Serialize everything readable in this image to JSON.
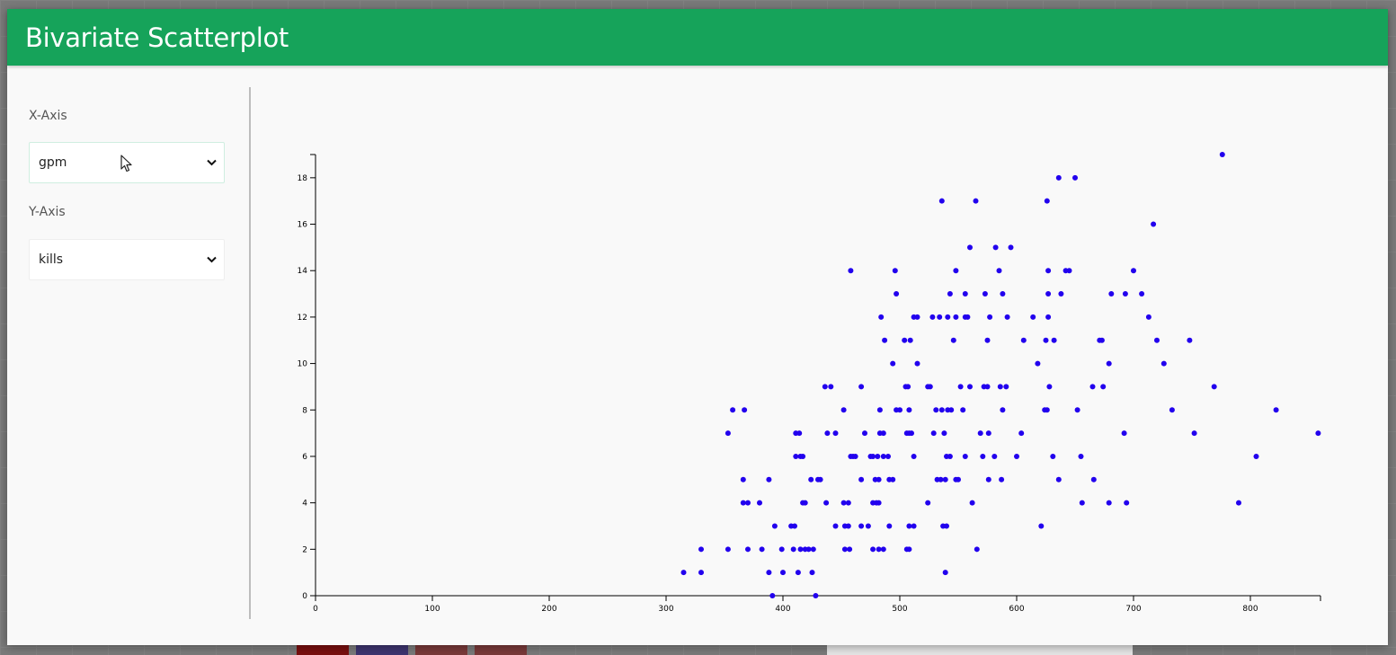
{
  "header": {
    "title": "Bivariate Scatterplot"
  },
  "controls": {
    "x_axis": {
      "label": "X-Axis",
      "selected": "gpm"
    },
    "y_axis": {
      "label": "Y-Axis",
      "selected": "kills"
    }
  },
  "colors": {
    "header": "#16a35a",
    "point": "#2200ee"
  },
  "chart_data": {
    "type": "scatter",
    "title": "",
    "xlabel": "",
    "ylabel": "",
    "xlim": [
      0,
      860
    ],
    "ylim": [
      0,
      19
    ],
    "xticks": [
      0,
      100,
      200,
      300,
      400,
      500,
      600,
      700,
      800
    ],
    "yticks": [
      0,
      2,
      4,
      6,
      8,
      10,
      12,
      14,
      16,
      18
    ],
    "grid": false,
    "legend": "none",
    "points": [
      [
        776,
        19
      ],
      [
        636,
        18
      ],
      [
        650,
        18
      ],
      [
        536,
        17
      ],
      [
        565,
        17
      ],
      [
        626,
        17
      ],
      [
        717,
        16
      ],
      [
        560,
        15
      ],
      [
        582,
        15
      ],
      [
        595,
        15
      ],
      [
        458,
        14
      ],
      [
        496,
        14
      ],
      [
        548,
        14
      ],
      [
        585,
        14
      ],
      [
        627,
        14
      ],
      [
        642,
        14
      ],
      [
        645,
        14
      ],
      [
        700,
        14
      ],
      [
        497,
        13
      ],
      [
        543,
        13
      ],
      [
        556,
        13
      ],
      [
        573,
        13
      ],
      [
        588,
        13
      ],
      [
        627,
        13
      ],
      [
        638,
        13
      ],
      [
        681,
        13
      ],
      [
        693,
        13
      ],
      [
        707,
        13
      ],
      [
        484,
        12
      ],
      [
        512,
        12
      ],
      [
        515,
        12
      ],
      [
        528,
        12
      ],
      [
        534,
        12
      ],
      [
        541,
        12
      ],
      [
        548,
        12
      ],
      [
        556,
        12
      ],
      [
        558,
        12
      ],
      [
        577,
        12
      ],
      [
        592,
        12
      ],
      [
        614,
        12
      ],
      [
        627,
        12
      ],
      [
        713,
        12
      ],
      [
        487,
        11
      ],
      [
        504,
        11
      ],
      [
        509,
        11
      ],
      [
        546,
        11
      ],
      [
        575,
        11
      ],
      [
        606,
        11
      ],
      [
        625,
        11
      ],
      [
        632,
        11
      ],
      [
        671,
        11
      ],
      [
        673,
        11
      ],
      [
        720,
        11
      ],
      [
        748,
        11
      ],
      [
        494,
        10
      ],
      [
        515,
        10
      ],
      [
        618,
        10
      ],
      [
        679,
        10
      ],
      [
        726,
        10
      ],
      [
        436,
        9
      ],
      [
        441,
        9
      ],
      [
        467,
        9
      ],
      [
        505,
        9
      ],
      [
        507,
        9
      ],
      [
        524,
        9
      ],
      [
        526,
        9
      ],
      [
        552,
        9
      ],
      [
        560,
        9
      ],
      [
        572,
        9
      ],
      [
        575,
        9
      ],
      [
        586,
        9
      ],
      [
        591,
        9
      ],
      [
        628,
        9
      ],
      [
        665,
        9
      ],
      [
        674,
        9
      ],
      [
        769,
        9
      ],
      [
        357,
        8
      ],
      [
        367,
        8
      ],
      [
        452,
        8
      ],
      [
        483,
        8
      ],
      [
        497,
        8
      ],
      [
        500,
        8
      ],
      [
        508,
        8
      ],
      [
        531,
        8
      ],
      [
        536,
        8
      ],
      [
        541,
        8
      ],
      [
        544,
        8
      ],
      [
        554,
        8
      ],
      [
        588,
        8
      ],
      [
        624,
        8
      ],
      [
        626,
        8
      ],
      [
        652,
        8
      ],
      [
        733,
        8
      ],
      [
        822,
        8
      ],
      [
        353,
        7
      ],
      [
        411,
        7
      ],
      [
        414,
        7
      ],
      [
        438,
        7
      ],
      [
        445,
        7
      ],
      [
        470,
        7
      ],
      [
        483,
        7
      ],
      [
        486,
        7
      ],
      [
        506,
        7
      ],
      [
        508,
        7
      ],
      [
        510,
        7
      ],
      [
        529,
        7
      ],
      [
        538,
        7
      ],
      [
        569,
        7
      ],
      [
        576,
        7
      ],
      [
        604,
        7
      ],
      [
        692,
        7
      ],
      [
        752,
        7
      ],
      [
        858,
        7
      ],
      [
        411,
        6
      ],
      [
        415,
        6
      ],
      [
        417,
        6
      ],
      [
        458,
        6
      ],
      [
        460,
        6
      ],
      [
        462,
        6
      ],
      [
        475,
        6
      ],
      [
        477,
        6
      ],
      [
        481,
        6
      ],
      [
        486,
        6
      ],
      [
        490,
        6
      ],
      [
        512,
        6
      ],
      [
        540,
        6
      ],
      [
        543,
        6
      ],
      [
        556,
        6
      ],
      [
        571,
        6
      ],
      [
        581,
        6
      ],
      [
        600,
        6
      ],
      [
        631,
        6
      ],
      [
        655,
        6
      ],
      [
        805,
        6
      ],
      [
        366,
        5
      ],
      [
        388,
        5
      ],
      [
        424,
        5
      ],
      [
        430,
        5
      ],
      [
        432,
        5
      ],
      [
        467,
        5
      ],
      [
        479,
        5
      ],
      [
        482,
        5
      ],
      [
        491,
        5
      ],
      [
        494,
        5
      ],
      [
        532,
        5
      ],
      [
        535,
        5
      ],
      [
        539,
        5
      ],
      [
        548,
        5
      ],
      [
        550,
        5
      ],
      [
        576,
        5
      ],
      [
        587,
        5
      ],
      [
        636,
        5
      ],
      [
        666,
        5
      ],
      [
        366,
        4
      ],
      [
        370,
        4
      ],
      [
        380,
        4
      ],
      [
        417,
        4
      ],
      [
        419,
        4
      ],
      [
        437,
        4
      ],
      [
        452,
        4
      ],
      [
        456,
        4
      ],
      [
        477,
        4
      ],
      [
        480,
        4
      ],
      [
        482,
        4
      ],
      [
        524,
        4
      ],
      [
        562,
        4
      ],
      [
        656,
        4
      ],
      [
        679,
        4
      ],
      [
        694,
        4
      ],
      [
        790,
        4
      ],
      [
        393,
        3
      ],
      [
        407,
        3
      ],
      [
        410,
        3
      ],
      [
        445,
        3
      ],
      [
        453,
        3
      ],
      [
        456,
        3
      ],
      [
        467,
        3
      ],
      [
        473,
        3
      ],
      [
        491,
        3
      ],
      [
        508,
        3
      ],
      [
        512,
        3
      ],
      [
        537,
        3
      ],
      [
        540,
        3
      ],
      [
        621,
        3
      ],
      [
        330,
        2
      ],
      [
        353,
        2
      ],
      [
        370,
        2
      ],
      [
        382,
        2
      ],
      [
        399,
        2
      ],
      [
        409,
        2
      ],
      [
        415,
        2
      ],
      [
        419,
        2
      ],
      [
        422,
        2
      ],
      [
        426,
        2
      ],
      [
        453,
        2
      ],
      [
        457,
        2
      ],
      [
        477,
        2
      ],
      [
        482,
        2
      ],
      [
        486,
        2
      ],
      [
        506,
        2
      ],
      [
        508,
        2
      ],
      [
        566,
        2
      ],
      [
        315,
        1
      ],
      [
        330,
        1
      ],
      [
        388,
        1
      ],
      [
        400,
        1
      ],
      [
        413,
        1
      ],
      [
        425,
        1
      ],
      [
        539,
        1
      ],
      [
        391,
        0
      ],
      [
        428,
        0
      ]
    ]
  }
}
